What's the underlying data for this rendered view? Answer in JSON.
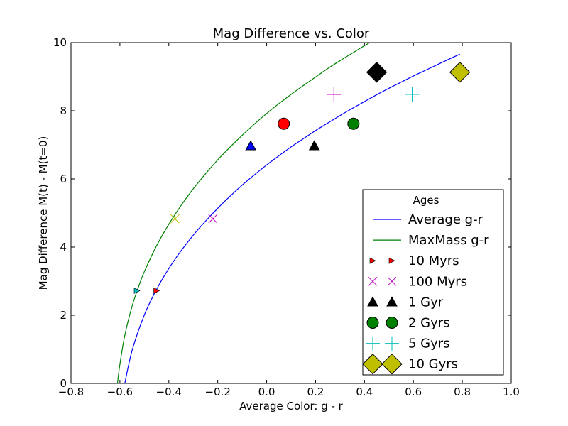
{
  "chart_data": {
    "type": "line",
    "title": "Mag Difference vs. Color",
    "xlabel": "Average Color: g - r",
    "ylabel": "Mag Difference M(t) - M(t=0)",
    "xlim": [
      -0.8,
      1.0
    ],
    "ylim": [
      0,
      10
    ],
    "xticks": [
      -0.8,
      -0.6,
      -0.4,
      -0.2,
      0.0,
      0.2,
      0.4,
      0.6,
      0.8,
      1.0
    ],
    "xtick_labels": [
      "−0.8",
      "−0.6",
      "−0.4",
      "−0.2",
      "0.0",
      "0.2",
      "0.4",
      "0.6",
      "0.8",
      "1.0"
    ],
    "yticks": [
      0,
      2,
      4,
      6,
      8,
      10
    ],
    "ytick_labels": [
      "0",
      "2",
      "4",
      "6",
      "8",
      "10"
    ],
    "grid": false,
    "series": [
      {
        "name": "Average g-r",
        "color": "#0000ff",
        "x": [
          -0.58,
          -0.55,
          -0.5,
          -0.45,
          -0.4,
          -0.35,
          -0.3,
          -0.25,
          -0.2,
          -0.15,
          -0.1,
          -0.05,
          0.0,
          0.05,
          0.1,
          0.15,
          0.2,
          0.25,
          0.3,
          0.35,
          0.4,
          0.45,
          0.5,
          0.55,
          0.6,
          0.65,
          0.7,
          0.75,
          0.79
        ],
        "y": [
          0.0,
          0.97,
          2.01,
          2.76,
          3.37,
          3.89,
          4.35,
          4.76,
          5.14,
          5.49,
          5.82,
          6.12,
          6.41,
          6.68,
          6.94,
          7.18,
          7.42,
          7.64,
          7.86,
          8.07,
          8.27,
          8.47,
          8.66,
          8.84,
          9.02,
          9.19,
          9.36,
          9.53,
          9.66
        ]
      },
      {
        "name": "MaxMass g-r",
        "color": "#008000",
        "x": [
          -0.61,
          -0.6,
          -0.58,
          -0.55,
          -0.52,
          -0.5,
          -0.45,
          -0.4,
          -0.35,
          -0.3,
          -0.25,
          -0.2,
          -0.15,
          -0.1,
          -0.05,
          0.0,
          0.05,
          0.1,
          0.15,
          0.2,
          0.25,
          0.3,
          0.35,
          0.4,
          0.45
        ],
        "y": [
          0.0,
          0.56,
          1.41,
          2.27,
          2.91,
          3.28,
          4.04,
          4.67,
          5.22,
          5.71,
          6.15,
          6.56,
          6.93,
          7.28,
          7.61,
          7.92,
          8.21,
          8.48,
          8.74,
          8.99,
          9.24,
          9.47,
          9.69,
          9.91,
          10.11
        ]
      }
    ],
    "markers": [
      {
        "name": "10 Myrs",
        "shape": "triangle-right",
        "fill": "#ff0000",
        "x": -0.45,
        "y": 2.72,
        "size": 4
      },
      {
        "name": "10 Myrs",
        "shape": "triangle-right",
        "fill": "#00bfbf",
        "x": -0.53,
        "y": 2.72,
        "size": 4
      },
      {
        "name": "100 Myrs",
        "shape": "x",
        "stroke": "#bf00bf",
        "x": -0.22,
        "y": 4.83,
        "size": 6
      },
      {
        "name": "100 Myrs",
        "shape": "x",
        "stroke": "#bfbf00",
        "x": -0.375,
        "y": 4.83,
        "size": 6
      },
      {
        "name": "1 Gyr",
        "shape": "triangle-up",
        "fill": "#000000",
        "x": 0.195,
        "y": 6.97,
        "size": 7
      },
      {
        "name": "1 Gyr",
        "shape": "triangle-up",
        "fill": "#0000ff",
        "x": -0.065,
        "y": 6.97,
        "size": 7
      },
      {
        "name": "2 Gyrs",
        "shape": "circle",
        "fill": "#008000",
        "x": 0.355,
        "y": 7.62,
        "size": 8
      },
      {
        "name": "2 Gyrs",
        "shape": "circle",
        "fill": "#ff0000",
        "x": 0.07,
        "y": 7.62,
        "size": 8
      },
      {
        "name": "5 Gyrs",
        "shape": "plus",
        "stroke": "#00bfbf",
        "x": 0.595,
        "y": 8.48,
        "size": 10
      },
      {
        "name": "5 Gyrs",
        "shape": "plus",
        "stroke": "#bf00bf",
        "x": 0.275,
        "y": 8.48,
        "size": 10
      },
      {
        "name": "10 Gyrs",
        "shape": "diamond",
        "fill": "#bfbf00",
        "x": 0.79,
        "y": 9.13,
        "size": 14
      },
      {
        "name": "10 Gyrs",
        "shape": "diamond",
        "fill": "#000000",
        "x": 0.45,
        "y": 9.13,
        "size": 14
      }
    ],
    "legend": {
      "title": "Ages",
      "placement": "lower right",
      "entries": [
        {
          "label": "Average g-r",
          "shape": "line",
          "color": "#0000ff"
        },
        {
          "label": "MaxMass g-r",
          "shape": "line",
          "color": "#008000"
        },
        {
          "label": "10 Myrs",
          "shape": "triangle-right",
          "fill": "#ff0000",
          "size": 4
        },
        {
          "label": "100 Myrs",
          "shape": "x",
          "stroke": "#bf00bf",
          "size": 6
        },
        {
          "label": "1 Gyr",
          "shape": "triangle-up",
          "fill": "#000000",
          "size": 7
        },
        {
          "label": "2 Gyrs",
          "shape": "circle",
          "fill": "#008000",
          "size": 8
        },
        {
          "label": "5 Gyrs",
          "shape": "plus",
          "stroke": "#00bfbf",
          "size": 10
        },
        {
          "label": "10 Gyrs",
          "shape": "diamond",
          "fill": "#bfbf00",
          "size": 14
        }
      ]
    }
  }
}
